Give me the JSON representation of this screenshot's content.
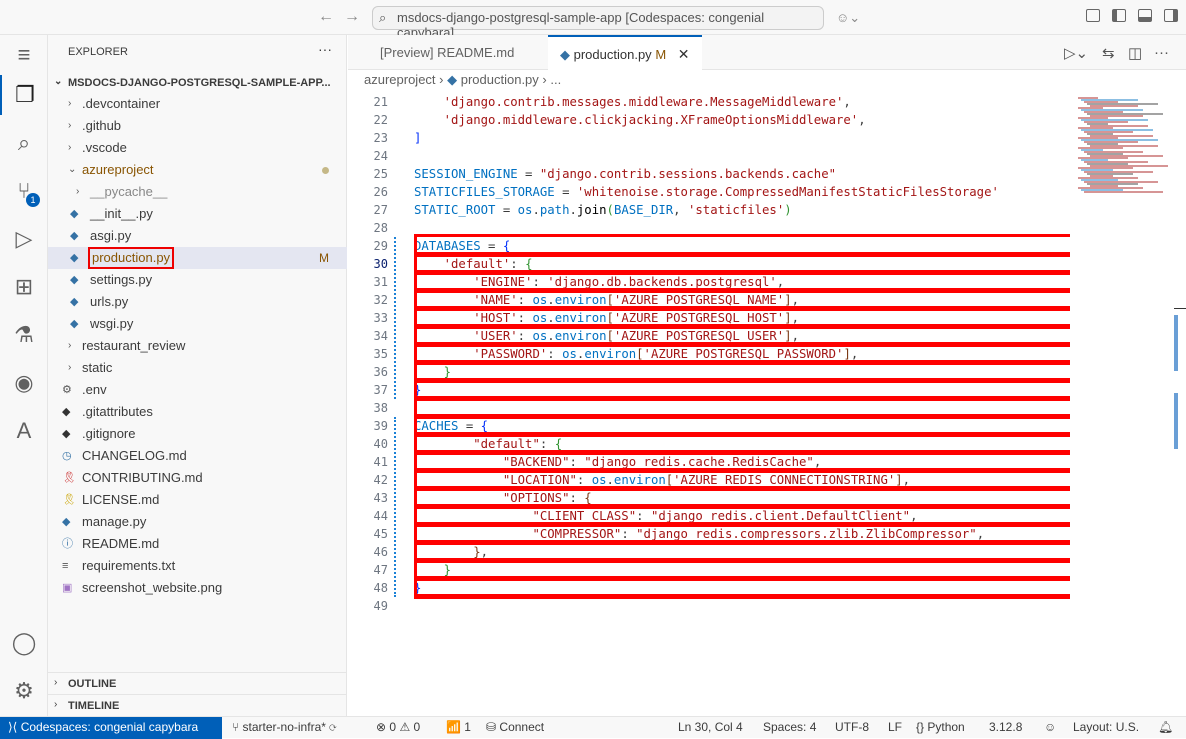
{
  "titlebar": {
    "search": "msdocs-django-postgresql-sample-app [Codespaces: congenial capybara]"
  },
  "explorer": {
    "title": "EXPLORER",
    "root": "MSDOCS-DJANGO-POSTGRESQL-SAMPLE-APP...",
    "items": [
      {
        "label": ".devcontainer",
        "type": "folder",
        "level": 0,
        "open": false
      },
      {
        "label": ".github",
        "type": "folder",
        "level": 0,
        "open": false
      },
      {
        "label": ".vscode",
        "type": "folder",
        "level": 0,
        "open": false
      },
      {
        "label": "azureproject",
        "type": "folder",
        "level": 0,
        "open": true,
        "modified_dot": true,
        "color": "#895503"
      },
      {
        "label": "__pycache__",
        "type": "folder",
        "level": 1,
        "open": false,
        "dim": true
      },
      {
        "label": "__init__.py",
        "type": "python",
        "level": 1
      },
      {
        "label": "asgi.py",
        "type": "python",
        "level": 1
      },
      {
        "label": "production.py",
        "type": "python",
        "level": 1,
        "selected": true,
        "badge": "M",
        "color": "#895503"
      },
      {
        "label": "settings.py",
        "type": "python",
        "level": 1
      },
      {
        "label": "urls.py",
        "type": "python",
        "level": 1
      },
      {
        "label": "wsgi.py",
        "type": "python",
        "level": 1
      },
      {
        "label": "restaurant_review",
        "type": "folder",
        "level": 0,
        "open": false
      },
      {
        "label": "static",
        "type": "folder",
        "level": 0,
        "open": false
      },
      {
        "label": ".env",
        "type": "gear",
        "level": 0
      },
      {
        "label": ".gitattributes",
        "type": "git",
        "level": 0
      },
      {
        "label": ".gitignore",
        "type": "git",
        "level": 0
      },
      {
        "label": "CHANGELOG.md",
        "type": "clock",
        "level": 0
      },
      {
        "label": "CONTRIBUTING.md",
        "type": "ribbon",
        "level": 0
      },
      {
        "label": "LICENSE.md",
        "type": "license",
        "level": 0
      },
      {
        "label": "manage.py",
        "type": "python",
        "level": 0
      },
      {
        "label": "README.md",
        "type": "info",
        "level": 0
      },
      {
        "label": "requirements.txt",
        "type": "lines",
        "level": 0
      },
      {
        "label": "screenshot_website.png",
        "type": "image",
        "level": 0
      }
    ],
    "outline": "OUTLINE",
    "timeline": "TIMELINE"
  },
  "tabs": [
    {
      "label": "[Preview] README.md",
      "active": false
    },
    {
      "label": "production.py",
      "active": true,
      "badge": "M"
    }
  ],
  "breadcrumb": [
    "azureproject",
    "production.py",
    "..."
  ],
  "editor": {
    "first_line": 21,
    "current_line": 30,
    "highlight_lines": [
      29,
      48
    ],
    "lines": [
      [
        [
          "    ",
          ""
        ],
        [
          "'django.contrib.messages.middleware.MessageMiddleware'",
          "s"
        ],
        [
          ",",
          ""
        ]
      ],
      [
        [
          "    ",
          ""
        ],
        [
          "'django.middleware.clickjacking.XFrameOptionsMiddleware'",
          "s"
        ],
        [
          ",",
          ""
        ]
      ],
      [
        [
          "]",
          "b1"
        ]
      ],
      [],
      [
        [
          "SESSION_ENGINE",
          "v"
        ],
        [
          " = ",
          ""
        ],
        [
          "\"django.contrib.sessions.backends.cache\"",
          "s"
        ]
      ],
      [
        [
          "STATICFILES_STORAGE",
          "v"
        ],
        [
          " = ",
          ""
        ],
        [
          "'whitenoise.storage.CompressedManifestStaticFilesStorage'",
          "s"
        ]
      ],
      [
        [
          "STATIC_ROOT",
          "v"
        ],
        [
          " = ",
          ""
        ],
        [
          "os",
          "v"
        ],
        [
          ".",
          ""
        ],
        [
          "path",
          "v"
        ],
        [
          ".",
          ""
        ],
        [
          "join",
          "op"
        ],
        [
          "(",
          "b2"
        ],
        [
          "BASE_DIR",
          "v"
        ],
        [
          ", ",
          ""
        ],
        [
          "'staticfiles'",
          "s"
        ],
        [
          ")",
          "b2"
        ]
      ],
      [],
      [
        [
          "DATABASES",
          "v"
        ],
        [
          " = ",
          ""
        ],
        [
          "{",
          "b1"
        ]
      ],
      [
        [
          "    ",
          ""
        ],
        [
          "'default'",
          "s"
        ],
        [
          ": ",
          ""
        ],
        [
          "{",
          "b2"
        ]
      ],
      [
        [
          "        ",
          ""
        ],
        [
          "'ENGINE'",
          "s"
        ],
        [
          ": ",
          ""
        ],
        [
          "'django.db.backends.postgresql'",
          "s"
        ],
        [
          ",",
          ""
        ]
      ],
      [
        [
          "        ",
          ""
        ],
        [
          "'NAME'",
          "s"
        ],
        [
          ": ",
          ""
        ],
        [
          "os",
          "v"
        ],
        [
          ".",
          ""
        ],
        [
          "environ",
          "v"
        ],
        [
          "[",
          "b3"
        ],
        [
          "'AZURE_POSTGRESQL_NAME'",
          "s"
        ],
        [
          "]",
          "b3"
        ],
        [
          ",",
          ""
        ]
      ],
      [
        [
          "        ",
          ""
        ],
        [
          "'HOST'",
          "s"
        ],
        [
          ": ",
          ""
        ],
        [
          "os",
          "v"
        ],
        [
          ".",
          ""
        ],
        [
          "environ",
          "v"
        ],
        [
          "[",
          "b3"
        ],
        [
          "'AZURE_POSTGRESQL_HOST'",
          "s"
        ],
        [
          "]",
          "b3"
        ],
        [
          ",",
          ""
        ]
      ],
      [
        [
          "        ",
          ""
        ],
        [
          "'USER'",
          "s"
        ],
        [
          ": ",
          ""
        ],
        [
          "os",
          "v"
        ],
        [
          ".",
          ""
        ],
        [
          "environ",
          "v"
        ],
        [
          "[",
          "b3"
        ],
        [
          "'AZURE_POSTGRESQL_USER'",
          "s"
        ],
        [
          "]",
          "b3"
        ],
        [
          ",",
          ""
        ]
      ],
      [
        [
          "        ",
          ""
        ],
        [
          "'PASSWORD'",
          "s"
        ],
        [
          ": ",
          ""
        ],
        [
          "os",
          "v"
        ],
        [
          ".",
          ""
        ],
        [
          "environ",
          "v"
        ],
        [
          "[",
          "b3"
        ],
        [
          "'AZURE_POSTGRESQL_PASSWORD'",
          "s"
        ],
        [
          "]",
          "b3"
        ],
        [
          ",",
          ""
        ]
      ],
      [
        [
          "    ",
          ""
        ],
        [
          "}",
          "b2"
        ]
      ],
      [
        [
          "}",
          "b1"
        ]
      ],
      [],
      [
        [
          "CACHES",
          "v"
        ],
        [
          " = ",
          ""
        ],
        [
          "{",
          "b1"
        ]
      ],
      [
        [
          "        ",
          ""
        ],
        [
          "\"default\"",
          "s"
        ],
        [
          ": ",
          ""
        ],
        [
          "{",
          "b2"
        ]
      ],
      [
        [
          "            ",
          ""
        ],
        [
          "\"BACKEND\"",
          "s"
        ],
        [
          ": ",
          ""
        ],
        [
          "\"django_redis.cache.RedisCache\"",
          "s"
        ],
        [
          ",",
          ""
        ]
      ],
      [
        [
          "            ",
          ""
        ],
        [
          "\"LOCATION\"",
          "s"
        ],
        [
          ": ",
          ""
        ],
        [
          "os",
          "v"
        ],
        [
          ".",
          ""
        ],
        [
          "environ",
          "v"
        ],
        [
          "[",
          "b3"
        ],
        [
          "'AZURE_REDIS_CONNECTIONSTRING'",
          "s"
        ],
        [
          "]",
          "b3"
        ],
        [
          ",",
          ""
        ]
      ],
      [
        [
          "            ",
          ""
        ],
        [
          "\"OPTIONS\"",
          "s"
        ],
        [
          ": ",
          ""
        ],
        [
          "{",
          "b3"
        ]
      ],
      [
        [
          "                ",
          ""
        ],
        [
          "\"CLIENT_CLASS\"",
          "s"
        ],
        [
          ": ",
          ""
        ],
        [
          "\"django_redis.client.DefaultClient\"",
          "s"
        ],
        [
          ",",
          ""
        ]
      ],
      [
        [
          "                ",
          ""
        ],
        [
          "\"COMPRESSOR\"",
          "s"
        ],
        [
          ": ",
          ""
        ],
        [
          "\"django_redis.compressors.zlib.ZlibCompressor\"",
          "s"
        ],
        [
          ",",
          ""
        ]
      ],
      [
        [
          "        ",
          ""
        ],
        [
          "}",
          "b3"
        ],
        [
          ",",
          ""
        ]
      ],
      [
        [
          "    ",
          ""
        ],
        [
          "}",
          "b2"
        ]
      ],
      [
        [
          "}",
          "b1"
        ]
      ],
      []
    ]
  },
  "status": {
    "remote": "Codespaces: congenial capybara",
    "branch": "starter-no-infra*",
    "errors": "0",
    "warnings": "0",
    "ports": "1",
    "connect": "Connect",
    "position": "Ln 30, Col 4",
    "spaces": "Spaces: 4",
    "encoding": "UTF-8",
    "eol": "LF",
    "language": "Python",
    "version": "3.12.8",
    "layout": "Layout: U.S."
  },
  "colors": {
    "accent": "#005fb8",
    "highlight_box": "#ff0000",
    "modified": "#895503"
  }
}
